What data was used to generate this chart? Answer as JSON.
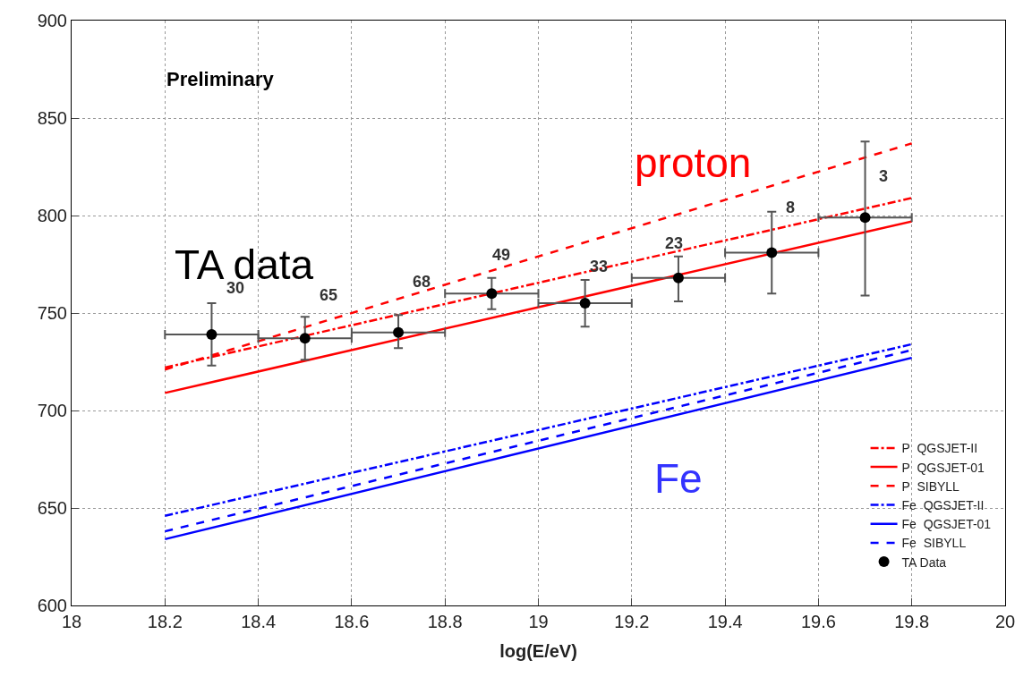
{
  "chart_data": {
    "type": "line",
    "xlabel": "log(E/eV)",
    "xlim": [
      18,
      20
    ],
    "ylim": [
      600,
      900
    ],
    "xticks": [
      18,
      18.2,
      18.4,
      18.6,
      18.8,
      19,
      19.2,
      19.4,
      19.6,
      19.8,
      20
    ],
    "yticks": [
      600,
      650,
      700,
      750,
      800,
      850,
      900
    ],
    "grid": true,
    "legend": "bottom right",
    "marker": "none",
    "series": [
      {
        "name": "P  QGSJET-II",
        "color": "#ff0000",
        "line_style": "dashdot",
        "x": [
          18.2,
          19.8
        ],
        "values": [
          722,
          809
        ]
      },
      {
        "name": "P  QGSJET-01",
        "color": "#ff0000",
        "line_style": "solid",
        "x": [
          18.2,
          19.8
        ],
        "values": [
          709,
          797
        ]
      },
      {
        "name": "P  SIBYLL",
        "color": "#ff0000",
        "line_style": "dashed",
        "x": [
          18.2,
          19.8
        ],
        "values": [
          721,
          837
        ]
      },
      {
        "name": "Fe  QGSJET-II",
        "color": "#0000ff",
        "line_style": "dashdot",
        "x": [
          18.2,
          19.8
        ],
        "values": [
          646,
          734
        ]
      },
      {
        "name": "Fe  QGSJET-01",
        "color": "#0000ff",
        "line_style": "solid",
        "x": [
          18.2,
          19.8
        ],
        "values": [
          634,
          727
        ]
      },
      {
        "name": "Fe  SIBYLL",
        "color": "#0000ff",
        "line_style": "dashed",
        "x": [
          18.2,
          19.8
        ],
        "values": [
          638,
          731
        ]
      },
      {
        "name": "TA Data",
        "type": "scatter",
        "color": "#000000",
        "marker": "circle",
        "x": [
          18.3,
          18.5,
          18.7,
          18.9,
          19.1,
          19.3,
          19.5,
          19.7
        ],
        "values": [
          739,
          737,
          740,
          760,
          755,
          768,
          781,
          799
        ],
        "errors": [
          [
            723,
            755
          ],
          [
            726,
            748
          ],
          [
            732,
            749
          ],
          [
            752,
            768
          ],
          [
            743,
            767
          ],
          [
            756,
            779
          ],
          [
            760,
            802
          ],
          [
            759,
            838
          ]
        ],
        "xerrors": [
          0.1,
          0.1,
          0.1,
          0.1,
          0.1,
          0.1,
          0.1,
          0.1
        ]
      }
    ],
    "annotations": [
      "Preliminary",
      "TA data",
      "proton",
      "Fe",
      "30",
      "65",
      "68",
      "49",
      "33",
      "23",
      "8",
      "3"
    ]
  }
}
